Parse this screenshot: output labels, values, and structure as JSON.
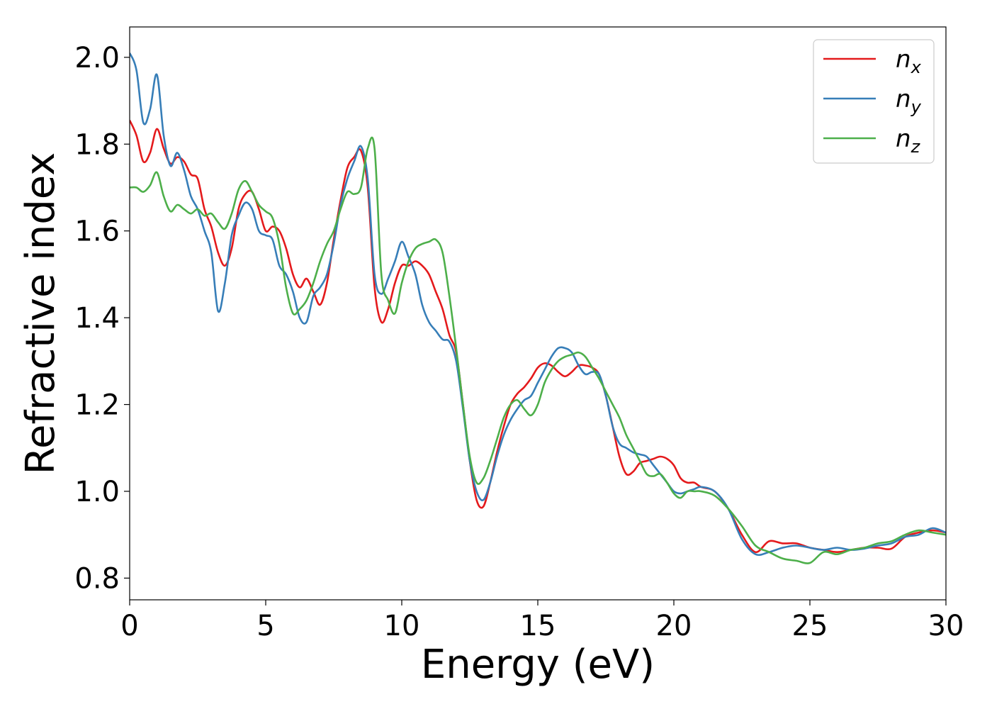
{
  "chart_data": {
    "type": "line",
    "xlabel": "Energy (eV)",
    "ylabel": "Refractive index",
    "xlim": [
      0,
      30
    ],
    "ylim": [
      0.75,
      2.07
    ],
    "xticks": [
      0,
      5,
      10,
      15,
      20,
      25,
      30
    ],
    "xtick_labels": [
      "0",
      "5",
      "10",
      "15",
      "20",
      "25",
      "30"
    ],
    "yticks": [
      0.8,
      1.0,
      1.2,
      1.4,
      1.6,
      1.8,
      2.0
    ],
    "ytick_labels": [
      "0.8",
      "1.0",
      "1.2",
      "1.4",
      "1.6",
      "1.8",
      "2.0"
    ],
    "grid": false,
    "legend_position": "top-right",
    "series": [
      {
        "name": "x",
        "name_prefix": "n",
        "color": "#e41a1c",
        "x": [
          0,
          0.25,
          0.5,
          0.75,
          1.0,
          1.25,
          1.5,
          1.75,
          2.0,
          2.25,
          2.5,
          2.75,
          3.0,
          3.25,
          3.5,
          3.75,
          4.0,
          4.25,
          4.5,
          4.75,
          5.0,
          5.25,
          5.5,
          5.75,
          6.0,
          6.25,
          6.5,
          6.75,
          7.0,
          7.25,
          7.5,
          7.75,
          8.0,
          8.25,
          8.5,
          8.75,
          9.0,
          9.25,
          9.5,
          9.75,
          10.0,
          10.25,
          10.5,
          10.75,
          11.0,
          11.25,
          11.5,
          11.75,
          12.0,
          12.25,
          12.5,
          12.75,
          13.0,
          13.25,
          13.5,
          13.75,
          14.0,
          14.25,
          14.5,
          14.75,
          15.0,
          15.25,
          15.5,
          15.75,
          16.0,
          16.25,
          16.5,
          16.75,
          17.0,
          17.25,
          17.5,
          17.75,
          18.0,
          18.25,
          18.5,
          18.75,
          19.0,
          19.25,
          19.5,
          19.75,
          20.0,
          20.25,
          20.5,
          20.75,
          21.0,
          21.5,
          22.0,
          22.5,
          23.0,
          23.5,
          24.0,
          24.5,
          25.0,
          25.5,
          26.0,
          26.5,
          27.0,
          27.5,
          28.0,
          28.5,
          29.0,
          29.5,
          30.0
        ],
        "y": [
          1.855,
          1.82,
          1.76,
          1.78,
          1.835,
          1.79,
          1.755,
          1.77,
          1.76,
          1.73,
          1.72,
          1.65,
          1.61,
          1.55,
          1.52,
          1.56,
          1.65,
          1.685,
          1.69,
          1.65,
          1.6,
          1.61,
          1.6,
          1.56,
          1.5,
          1.47,
          1.49,
          1.46,
          1.43,
          1.48,
          1.58,
          1.67,
          1.745,
          1.77,
          1.785,
          1.7,
          1.47,
          1.39,
          1.42,
          1.48,
          1.52,
          1.52,
          1.53,
          1.52,
          1.5,
          1.46,
          1.42,
          1.36,
          1.32,
          1.2,
          1.07,
          0.98,
          0.965,
          1.02,
          1.09,
          1.15,
          1.2,
          1.225,
          1.24,
          1.26,
          1.285,
          1.295,
          1.29,
          1.275,
          1.265,
          1.275,
          1.29,
          1.29,
          1.285,
          1.27,
          1.22,
          1.15,
          1.08,
          1.04,
          1.045,
          1.065,
          1.07,
          1.075,
          1.08,
          1.075,
          1.06,
          1.03,
          1.02,
          1.02,
          1.01,
          1.0,
          0.96,
          0.9,
          0.86,
          0.885,
          0.88,
          0.88,
          0.87,
          0.865,
          0.86,
          0.865,
          0.87,
          0.87,
          0.868,
          0.895,
          0.905,
          0.91,
          0.905
        ]
      },
      {
        "name": "y",
        "name_prefix": "n",
        "color": "#377eb8",
        "x": [
          0,
          0.25,
          0.5,
          0.75,
          1.0,
          1.25,
          1.5,
          1.75,
          2.0,
          2.25,
          2.5,
          2.75,
          3.0,
          3.25,
          3.5,
          3.75,
          4.0,
          4.25,
          4.5,
          4.75,
          5.0,
          5.25,
          5.5,
          5.75,
          6.0,
          6.25,
          6.5,
          6.75,
          7.0,
          7.25,
          7.5,
          7.75,
          8.0,
          8.25,
          8.5,
          8.75,
          9.0,
          9.25,
          9.5,
          9.75,
          10.0,
          10.25,
          10.5,
          10.75,
          11.0,
          11.25,
          11.5,
          11.75,
          12.0,
          12.25,
          12.5,
          12.75,
          13.0,
          13.25,
          13.5,
          13.75,
          14.0,
          14.25,
          14.5,
          14.75,
          15.0,
          15.25,
          15.5,
          15.75,
          16.0,
          16.25,
          16.5,
          16.75,
          17.0,
          17.25,
          17.5,
          17.75,
          18.0,
          18.25,
          18.5,
          18.75,
          19.0,
          19.25,
          19.5,
          19.75,
          20.0,
          20.25,
          20.5,
          20.75,
          21.0,
          21.5,
          22.0,
          22.5,
          23.0,
          23.5,
          24.0,
          24.5,
          25.0,
          25.5,
          26.0,
          26.5,
          27.0,
          27.5,
          28.0,
          28.5,
          29.0,
          29.5,
          30.0
        ],
        "y": [
          2.01,
          1.97,
          1.85,
          1.88,
          1.96,
          1.82,
          1.75,
          1.78,
          1.74,
          1.68,
          1.65,
          1.6,
          1.55,
          1.415,
          1.48,
          1.59,
          1.635,
          1.665,
          1.65,
          1.6,
          1.59,
          1.58,
          1.52,
          1.5,
          1.46,
          1.4,
          1.39,
          1.45,
          1.47,
          1.5,
          1.57,
          1.66,
          1.72,
          1.76,
          1.795,
          1.72,
          1.5,
          1.455,
          1.49,
          1.53,
          1.575,
          1.54,
          1.5,
          1.43,
          1.39,
          1.37,
          1.35,
          1.345,
          1.3,
          1.19,
          1.07,
          1.0,
          0.98,
          1.02,
          1.08,
          1.13,
          1.165,
          1.19,
          1.21,
          1.22,
          1.25,
          1.28,
          1.31,
          1.33,
          1.33,
          1.32,
          1.29,
          1.27,
          1.275,
          1.27,
          1.22,
          1.15,
          1.11,
          1.1,
          1.09,
          1.085,
          1.08,
          1.06,
          1.04,
          1.02,
          1.0,
          0.995,
          1.0,
          1.005,
          1.01,
          1.0,
          0.96,
          0.89,
          0.855,
          0.86,
          0.87,
          0.875,
          0.87,
          0.865,
          0.87,
          0.865,
          0.868,
          0.875,
          0.88,
          0.895,
          0.9,
          0.915,
          0.905
        ]
      },
      {
        "name": "z",
        "name_prefix": "n",
        "color": "#4daf4a",
        "x": [
          0,
          0.25,
          0.5,
          0.75,
          1.0,
          1.25,
          1.5,
          1.75,
          2.0,
          2.25,
          2.5,
          2.75,
          3.0,
          3.25,
          3.5,
          3.75,
          4.0,
          4.25,
          4.5,
          4.75,
          5.0,
          5.25,
          5.5,
          5.75,
          6.0,
          6.25,
          6.5,
          6.75,
          7.0,
          7.25,
          7.5,
          7.75,
          8.0,
          8.25,
          8.5,
          8.75,
          9.0,
          9.25,
          9.5,
          9.75,
          10.0,
          10.25,
          10.5,
          10.75,
          11.0,
          11.25,
          11.5,
          11.75,
          12.0,
          12.25,
          12.5,
          12.75,
          13.0,
          13.25,
          13.5,
          13.75,
          14.0,
          14.25,
          14.5,
          14.75,
          15.0,
          15.25,
          15.5,
          15.75,
          16.0,
          16.25,
          16.5,
          16.75,
          17.0,
          17.25,
          17.5,
          17.75,
          18.0,
          18.25,
          18.5,
          18.75,
          19.0,
          19.25,
          19.5,
          19.75,
          20.0,
          20.25,
          20.5,
          20.75,
          21.0,
          21.5,
          22.0,
          22.5,
          23.0,
          23.5,
          24.0,
          24.5,
          25.0,
          25.5,
          26.0,
          26.5,
          27.0,
          27.5,
          28.0,
          28.5,
          29.0,
          29.5,
          30.0
        ],
        "y": [
          1.7,
          1.7,
          1.69,
          1.705,
          1.735,
          1.68,
          1.645,
          1.66,
          1.65,
          1.64,
          1.65,
          1.635,
          1.64,
          1.62,
          1.605,
          1.64,
          1.695,
          1.715,
          1.69,
          1.66,
          1.645,
          1.63,
          1.57,
          1.47,
          1.41,
          1.42,
          1.44,
          1.48,
          1.53,
          1.57,
          1.6,
          1.65,
          1.69,
          1.685,
          1.7,
          1.79,
          1.79,
          1.5,
          1.44,
          1.41,
          1.48,
          1.53,
          1.56,
          1.57,
          1.575,
          1.58,
          1.55,
          1.45,
          1.33,
          1.2,
          1.08,
          1.02,
          1.03,
          1.07,
          1.12,
          1.17,
          1.2,
          1.21,
          1.19,
          1.175,
          1.2,
          1.25,
          1.28,
          1.3,
          1.31,
          1.315,
          1.32,
          1.31,
          1.285,
          1.26,
          1.23,
          1.2,
          1.17,
          1.13,
          1.1,
          1.07,
          1.04,
          1.035,
          1.04,
          1.02,
          0.995,
          0.985,
          1.0,
          1.0,
          1.0,
          0.99,
          0.96,
          0.92,
          0.875,
          0.86,
          0.845,
          0.84,
          0.835,
          0.86,
          0.855,
          0.865,
          0.87,
          0.88,
          0.885,
          0.9,
          0.91,
          0.905,
          0.9
        ]
      }
    ]
  }
}
